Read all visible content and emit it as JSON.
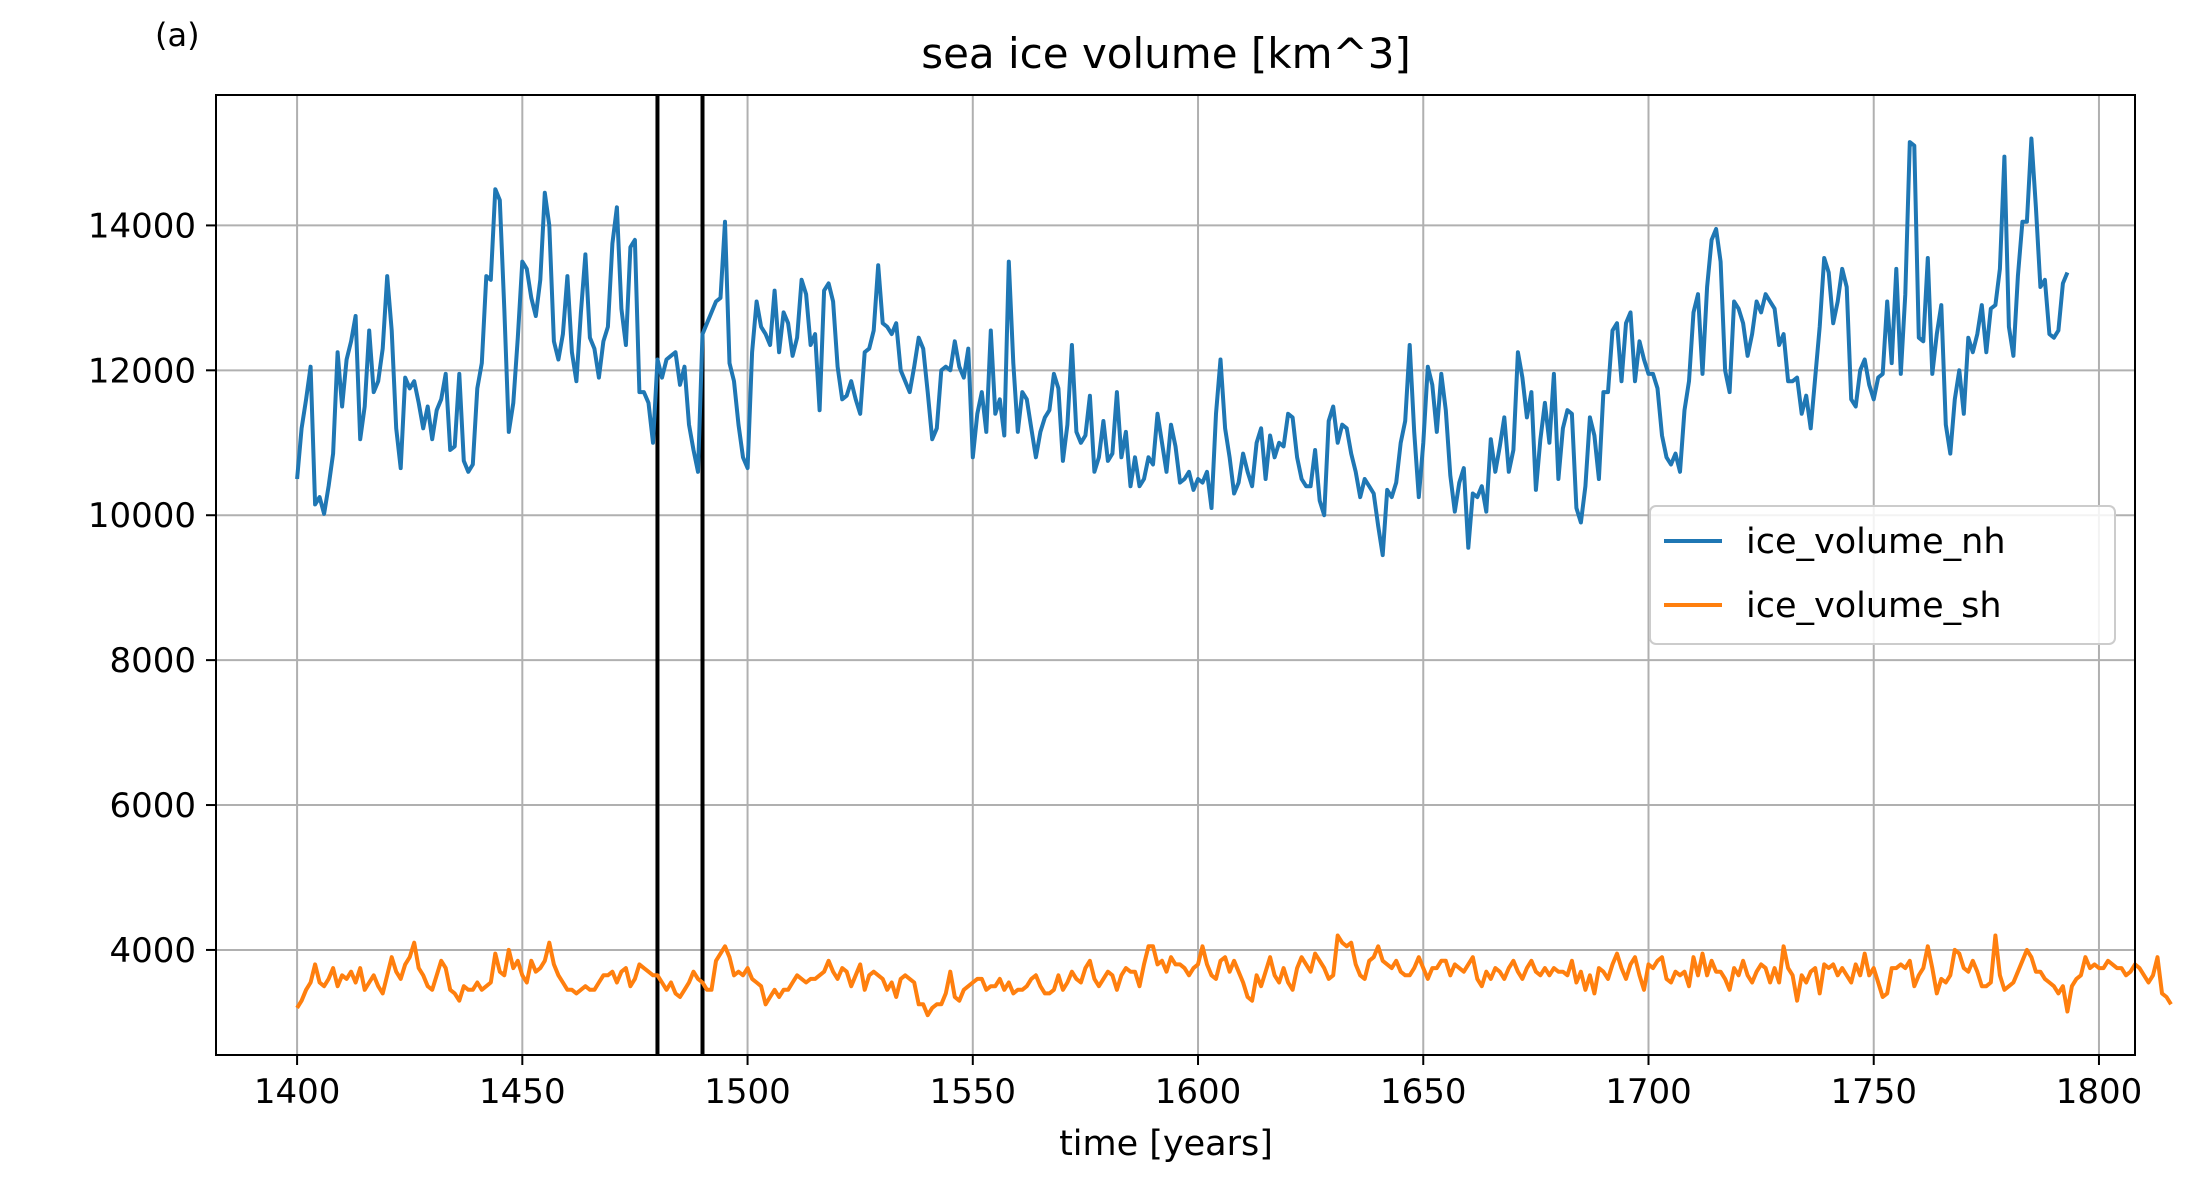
{
  "panel_label": "(a)",
  "chart_data": {
    "type": "line",
    "title": "sea ice volume [km^3]",
    "xlabel": "time [years]",
    "ylabel": "",
    "xlim": [
      1382,
      1808
    ],
    "ylim": [
      2550,
      15800
    ],
    "xticks": [
      1400,
      1450,
      1500,
      1550,
      1600,
      1650,
      1700,
      1750,
      1800
    ],
    "yticks": [
      4000,
      6000,
      8000,
      10000,
      12000,
      14000
    ],
    "grid": true,
    "legend_position": "center-right",
    "vlines": [
      1480,
      1490
    ],
    "series": [
      {
        "name": "ice_volume_nh",
        "color": "#1f77b4",
        "x_start": 1400,
        "x_step": 1,
        "values": [
          10500,
          11200,
          11600,
          12050,
          10150,
          10250,
          10020,
          10400,
          10850,
          12250,
          11500,
          12150,
          12400,
          12750,
          11050,
          11500,
          12550,
          11700,
          11850,
          12300,
          13300,
          12550,
          11200,
          10650,
          11900,
          11750,
          11850,
          11550,
          11200,
          11500,
          11050,
          11450,
          11600,
          11950,
          10900,
          10950,
          11950,
          10750,
          10600,
          10700,
          11750,
          12100,
          13300,
          13250,
          14500,
          14350,
          12850,
          11150,
          11550,
          12450,
          13500,
          13400,
          13000,
          12750,
          13250,
          14450,
          14000,
          12400,
          12150,
          12500,
          13300,
          12250,
          11850,
          12800,
          13600,
          12450,
          12300,
          11900,
          12400,
          12600,
          13750,
          14250,
          12850,
          12350,
          13700,
          13800,
          11700,
          11700,
          11550,
          11000,
          12150,
          11900,
          12150,
          12200,
          12250,
          11800,
          12050,
          11250,
          10900,
          10600,
          12500,
          12650,
          12800,
          12950,
          13000,
          14050,
          12100,
          11850,
          11250,
          10800,
          10650,
          12250,
          12950,
          12600,
          12500,
          12350,
          13100,
          12250,
          12800,
          12650,
          12200,
          12450,
          13250,
          13050,
          12350,
          12500,
          11450,
          13100,
          13200,
          12950,
          12050,
          11600,
          11650,
          11850,
          11600,
          11400,
          12250,
          12300,
          12550,
          13450,
          12650,
          12600,
          12500,
          12650,
          12000,
          11850,
          11700,
          12050,
          12450,
          12300,
          11700,
          11050,
          11200,
          12000,
          12050,
          12000,
          12400,
          12050,
          11900,
          12300,
          10800,
          11400,
          11700,
          11150,
          12550,
          11400,
          11600,
          11100,
          13500,
          12100,
          11150,
          11700,
          11600,
          11200,
          10800,
          11150,
          11350,
          11450,
          11950,
          11750,
          10750,
          11250,
          12350,
          11150,
          11000,
          11100,
          11650,
          10600,
          10800,
          11300,
          10750,
          10850,
          11700,
          10800,
          11150,
          10400,
          10800,
          10400,
          10500,
          10800,
          10700,
          11400,
          11000,
          10600,
          11250,
          10950,
          10450,
          10500,
          10600,
          10350,
          10500,
          10450,
          10600,
          10100,
          11400,
          12150,
          11200,
          10800,
          10300,
          10450,
          10850,
          10600,
          10400,
          11000,
          11200,
          10500,
          11100,
          10800,
          11000,
          10950,
          11400,
          11350,
          10800,
          10500,
          10400,
          10400,
          10900,
          10200,
          10000,
          11300,
          11500,
          11000,
          11250,
          11200,
          10850,
          10600,
          10250,
          10500,
          10400,
          10300,
          9850,
          9450,
          10350,
          10250,
          10450,
          11000,
          11300,
          12350,
          11150,
          10250,
          11000,
          12050,
          11800,
          11150,
          11950,
          11450,
          10550,
          10050,
          10450,
          10650,
          9550,
          10300,
          10250,
          10400,
          10050,
          11050,
          10600,
          10950,
          11350,
          10600,
          10900,
          12250,
          11900,
          11350,
          11700,
          10350,
          11050,
          11550,
          11000,
          11950,
          10500,
          11200,
          11450,
          11400,
          10100,
          9900,
          10400,
          11350,
          11100,
          10500,
          11700,
          11700,
          12550,
          12650,
          11850,
          12650,
          12800,
          11850,
          12400,
          12150,
          11950,
          11950,
          11750,
          11100,
          10800,
          10700,
          10850,
          10600,
          11450,
          11850,
          12800,
          13050,
          11950,
          13150,
          13800,
          13950,
          13500,
          12000,
          11700,
          12950,
          12850,
          12650,
          12200,
          12500,
          12950,
          12800,
          13050,
          12950,
          12850,
          12350,
          12500,
          11850,
          11850,
          11900,
          11400,
          11650,
          11200,
          11900,
          12600,
          13550,
          13350,
          12650,
          12950,
          13400,
          13150,
          11600,
          11500,
          12000,
          12150,
          11800,
          11600,
          11900,
          11950,
          12950,
          12100,
          13400,
          11950,
          13050,
          15150,
          15100,
          12450,
          12400,
          13550,
          11950,
          12500,
          12900,
          11250,
          10850,
          11600,
          12000,
          11400,
          12450,
          12250,
          12500,
          12900,
          12250,
          12850,
          12900,
          13400,
          14950,
          12600,
          12200,
          13300,
          14050,
          14050,
          15200,
          14250,
          13150,
          13250,
          12500,
          12450,
          12550,
          13200,
          13350
        ]
      },
      {
        "name": "ice_volume_sh",
        "color": "#ff7f0e",
        "x_start": 1400,
        "x_step": 1,
        "values": [
          3200,
          3300,
          3450,
          3550,
          3800,
          3550,
          3500,
          3600,
          3750,
          3500,
          3650,
          3600,
          3700,
          3550,
          3750,
          3450,
          3550,
          3650,
          3500,
          3400,
          3650,
          3900,
          3700,
          3600,
          3800,
          3900,
          4100,
          3750,
          3650,
          3500,
          3450,
          3650,
          3850,
          3750,
          3450,
          3400,
          3300,
          3500,
          3450,
          3450,
          3550,
          3450,
          3500,
          3550,
          3950,
          3700,
          3650,
          4000,
          3750,
          3850,
          3650,
          3550,
          3850,
          3700,
          3750,
          3850,
          4100,
          3800,
          3650,
          3550,
          3450,
          3450,
          3400,
          3450,
          3500,
          3450,
          3450,
          3550,
          3650,
          3650,
          3700,
          3550,
          3700,
          3750,
          3500,
          3600,
          3800,
          3750,
          3700,
          3650,
          3650,
          3550,
          3450,
          3550,
          3400,
          3350,
          3450,
          3550,
          3700,
          3600,
          3550,
          3450,
          3450,
          3850,
          3950,
          4050,
          3900,
          3650,
          3700,
          3650,
          3750,
          3600,
          3550,
          3500,
          3250,
          3350,
          3450,
          3350,
          3450,
          3450,
          3550,
          3650,
          3600,
          3550,
          3600,
          3600,
          3650,
          3700,
          3850,
          3700,
          3600,
          3750,
          3700,
          3500,
          3650,
          3800,
          3450,
          3650,
          3700,
          3650,
          3600,
          3450,
          3550,
          3350,
          3600,
          3650,
          3600,
          3550,
          3250,
          3250,
          3100,
          3200,
          3250,
          3250,
          3400,
          3700,
          3350,
          3300,
          3450,
          3500,
          3550,
          3600,
          3600,
          3450,
          3500,
          3500,
          3600,
          3450,
          3550,
          3400,
          3450,
          3450,
          3500,
          3600,
          3650,
          3500,
          3400,
          3400,
          3450,
          3650,
          3450,
          3550,
          3700,
          3600,
          3550,
          3750,
          3850,
          3600,
          3500,
          3600,
          3700,
          3650,
          3450,
          3650,
          3750,
          3700,
          3700,
          3500,
          3800,
          4050,
          4050,
          3800,
          3850,
          3700,
          3900,
          3800,
          3800,
          3750,
          3650,
          3750,
          3800,
          4050,
          3800,
          3650,
          3600,
          3850,
          3900,
          3700,
          3850,
          3700,
          3550,
          3350,
          3300,
          3650,
          3500,
          3700,
          3900,
          3650,
          3550,
          3750,
          3550,
          3450,
          3750,
          3900,
          3800,
          3700,
          3950,
          3850,
          3750,
          3600,
          3650,
          4200,
          4100,
          4050,
          4100,
          3800,
          3650,
          3600,
          3850,
          3900,
          4050,
          3850,
          3800,
          3750,
          3850,
          3700,
          3650,
          3650,
          3750,
          3900,
          3750,
          3600,
          3750,
          3750,
          3850,
          3850,
          3650,
          3800,
          3750,
          3700,
          3800,
          3900,
          3600,
          3500,
          3700,
          3600,
          3750,
          3700,
          3600,
          3750,
          3850,
          3700,
          3600,
          3750,
          3850,
          3700,
          3650,
          3750,
          3650,
          3750,
          3700,
          3700,
          3650,
          3850,
          3550,
          3700,
          3450,
          3650,
          3400,
          3750,
          3700,
          3600,
          3800,
          3950,
          3750,
          3600,
          3800,
          3900,
          3650,
          3450,
          3800,
          3750,
          3850,
          3900,
          3600,
          3550,
          3700,
          3650,
          3700,
          3500,
          3900,
          3650,
          3950,
          3650,
          3850,
          3700,
          3700,
          3600,
          3450,
          3750,
          3650,
          3850,
          3650,
          3550,
          3700,
          3800,
          3750,
          3550,
          3750,
          3550,
          4050,
          3750,
          3650,
          3300,
          3650,
          3550,
          3700,
          3750,
          3400,
          3800,
          3750,
          3800,
          3650,
          3750,
          3650,
          3550,
          3800,
          3650,
          3950,
          3650,
          3750,
          3550,
          3350,
          3400,
          3750,
          3750,
          3800,
          3750,
          3850,
          3500,
          3650,
          3750,
          4050,
          3750,
          3400,
          3600,
          3550,
          3650,
          4000,
          3950,
          3750,
          3700,
          3850,
          3700,
          3500,
          3500,
          3550,
          4200,
          3650,
          3450,
          3500,
          3550,
          3700,
          3850,
          4000,
          3900,
          3700,
          3700,
          3600,
          3550,
          3500,
          3400,
          3500,
          3150,
          3500,
          3600,
          3650,
          3900,
          3750,
          3800,
          3750,
          3750,
          3850,
          3800,
          3750,
          3750,
          3650,
          3700,
          3800,
          3750,
          3650,
          3550,
          3650,
          3900,
          3400,
          3350,
          3250
        ]
      }
    ]
  }
}
